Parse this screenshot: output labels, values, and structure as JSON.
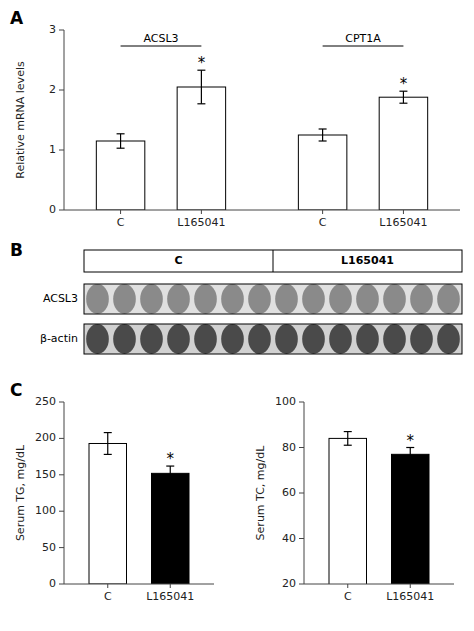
{
  "chart_data": [
    {
      "type": "bar",
      "title": "A",
      "categories": [
        "C",
        "L165041",
        "C",
        "L165041"
      ],
      "groups": [
        "ACSL3",
        "ACSL3",
        "CPT1A",
        "CPT1A"
      ],
      "values": [
        1.15,
        2.05,
        1.25,
        1.88
      ],
      "errors": [
        0.12,
        0.28,
        0.1,
        0.1
      ],
      "colors": [
        "white",
        "white",
        "white",
        "white"
      ],
      "annotations": [
        {
          "index": 1,
          "text": "*"
        },
        {
          "index": 3,
          "text": "*"
        }
      ],
      "ylabel": "Relative mRNA levels",
      "ylim": [
        0,
        3.0
      ],
      "yticks": [
        0,
        1,
        2,
        3
      ],
      "grid": false
    },
    {
      "type": "blot",
      "title": "B",
      "groups": [
        {
          "name": "C",
          "lanes": 7
        },
        {
          "name": "L165041",
          "lanes": 7
        }
      ],
      "rows": [
        "ACSL3",
        "β-actin"
      ]
    },
    {
      "type": "bar",
      "title": "C",
      "categories": [
        "C",
        "L165041"
      ],
      "values": [
        193,
        152
      ],
      "errors": [
        15,
        10
      ],
      "colors": [
        "white",
        "black"
      ],
      "annotations": [
        {
          "index": 1,
          "text": "*"
        }
      ],
      "ylabel": "Serum TG, mg/dL",
      "ylim": [
        0,
        250
      ],
      "yticks": [
        0,
        50,
        100,
        150,
        200,
        250
      ],
      "grid": false
    },
    {
      "type": "bar",
      "categories": [
        "C",
        "L165041"
      ],
      "values": [
        84,
        77
      ],
      "errors": [
        3,
        3
      ],
      "colors": [
        "white",
        "black"
      ],
      "annotations": [
        {
          "index": 1,
          "text": "*"
        }
      ],
      "ylabel": "Serum TC, mg/dL",
      "ylim": [
        20,
        100
      ],
      "yticks": [
        20,
        40,
        60,
        80,
        100
      ],
      "grid": false
    }
  ]
}
